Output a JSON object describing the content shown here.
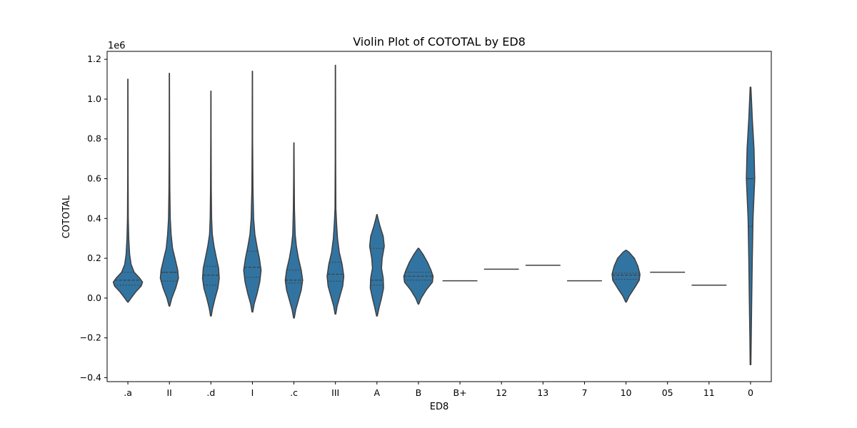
{
  "chart_data": {
    "type": "violin",
    "title": "Violin Plot of COTOTAL by ED8",
    "xlabel": "ED8",
    "ylabel": "COTOTAL",
    "y_scale_label": "1e6",
    "ylim": [
      -0.42,
      1.24
    ],
    "yticks": [
      -0.4,
      -0.2,
      0.0,
      0.2,
      0.4,
      0.6,
      0.8,
      1.0,
      1.2
    ],
    "ytick_labels": [
      "−0.4",
      "−0.2",
      "0.0",
      "0.2",
      "0.4",
      "0.6",
      "0.8",
      "1.0",
      "1.2"
    ],
    "color": "#3274a1",
    "edge_color": "#3f3f3f",
    "categories": [
      ".a",
      "II",
      ".d",
      "I",
      ".c",
      "III",
      "A",
      "B",
      "B+",
      "12",
      "13",
      "7",
      "10",
      "05",
      "11",
      "0"
    ],
    "violins": [
      {
        "category": ".a",
        "min": -0.02,
        "max": 1.1,
        "q1": 0.065,
        "median": 0.09,
        "q3": 0.13,
        "profile": [
          [
            -0.02,
            0.01
          ],
          [
            0.0,
            0.09
          ],
          [
            0.03,
            0.22
          ],
          [
            0.06,
            0.38
          ],
          [
            0.08,
            0.42
          ],
          [
            0.1,
            0.34
          ],
          [
            0.13,
            0.18
          ],
          [
            0.17,
            0.09
          ],
          [
            0.22,
            0.05
          ],
          [
            0.3,
            0.025
          ],
          [
            0.4,
            0.012
          ],
          [
            0.6,
            0.006
          ],
          [
            0.85,
            0.004
          ],
          [
            1.1,
            0.003
          ]
        ]
      },
      {
        "category": "II",
        "min": -0.04,
        "max": 1.13,
        "q1": 0.085,
        "median": 0.13,
        "q3": 0.13,
        "profile": [
          [
            -0.04,
            0.01
          ],
          [
            0.0,
            0.07
          ],
          [
            0.05,
            0.18
          ],
          [
            0.1,
            0.26
          ],
          [
            0.14,
            0.24
          ],
          [
            0.2,
            0.16
          ],
          [
            0.25,
            0.09
          ],
          [
            0.32,
            0.05
          ],
          [
            0.4,
            0.025
          ],
          [
            0.55,
            0.012
          ],
          [
            0.75,
            0.006
          ],
          [
            1.0,
            0.004
          ],
          [
            1.13,
            0.003
          ]
        ]
      },
      {
        "category": ".d",
        "min": -0.09,
        "max": 1.04,
        "q1": 0.065,
        "median": 0.115,
        "q3": 0.16,
        "profile": [
          [
            -0.09,
            0.01
          ],
          [
            -0.05,
            0.05
          ],
          [
            0.0,
            0.12
          ],
          [
            0.05,
            0.2
          ],
          [
            0.1,
            0.24
          ],
          [
            0.15,
            0.22
          ],
          [
            0.2,
            0.16
          ],
          [
            0.26,
            0.09
          ],
          [
            0.32,
            0.04
          ],
          [
            0.4,
            0.02
          ],
          [
            0.55,
            0.01
          ],
          [
            0.8,
            0.005
          ],
          [
            1.04,
            0.003
          ]
        ]
      },
      {
        "category": "I",
        "min": -0.07,
        "max": 1.14,
        "q1": 0.105,
        "median": 0.155,
        "q3": 0.235,
        "profile": [
          [
            -0.07,
            0.01
          ],
          [
            -0.03,
            0.05
          ],
          [
            0.02,
            0.13
          ],
          [
            0.08,
            0.21
          ],
          [
            0.14,
            0.25
          ],
          [
            0.2,
            0.2
          ],
          [
            0.26,
            0.13
          ],
          [
            0.32,
            0.07
          ],
          [
            0.4,
            0.035
          ],
          [
            0.55,
            0.015
          ],
          [
            0.8,
            0.006
          ],
          [
            1.14,
            0.003
          ]
        ]
      },
      {
        "category": ".c",
        "min": -0.1,
        "max": 0.78,
        "q1": 0.075,
        "median": 0.09,
        "q3": 0.14,
        "profile": [
          [
            -0.1,
            0.01
          ],
          [
            -0.06,
            0.05
          ],
          [
            -0.01,
            0.13
          ],
          [
            0.04,
            0.21
          ],
          [
            0.09,
            0.25
          ],
          [
            0.14,
            0.21
          ],
          [
            0.2,
            0.13
          ],
          [
            0.26,
            0.07
          ],
          [
            0.32,
            0.035
          ],
          [
            0.45,
            0.015
          ],
          [
            0.6,
            0.008
          ],
          [
            0.78,
            0.003
          ]
        ]
      },
      {
        "category": "III",
        "min": -0.08,
        "max": 1.17,
        "q1": 0.085,
        "median": 0.12,
        "q3": 0.18,
        "profile": [
          [
            -0.08,
            0.01
          ],
          [
            -0.04,
            0.05
          ],
          [
            0.01,
            0.13
          ],
          [
            0.06,
            0.21
          ],
          [
            0.11,
            0.24
          ],
          [
            0.17,
            0.19
          ],
          [
            0.23,
            0.11
          ],
          [
            0.3,
            0.06
          ],
          [
            0.38,
            0.03
          ],
          [
            0.45,
            0.013
          ],
          [
            0.7,
            0.006
          ],
          [
            1.17,
            0.003
          ]
        ]
      },
      {
        "category": "A",
        "min": -0.09,
        "max": 0.42,
        "q1": 0.065,
        "median": 0.09,
        "q3": 0.25,
        "profile": [
          [
            -0.09,
            0.01
          ],
          [
            -0.05,
            0.06
          ],
          [
            0.0,
            0.13
          ],
          [
            0.05,
            0.19
          ],
          [
            0.1,
            0.18
          ],
          [
            0.15,
            0.13
          ],
          [
            0.2,
            0.15
          ],
          [
            0.26,
            0.21
          ],
          [
            0.31,
            0.18
          ],
          [
            0.36,
            0.09
          ],
          [
            0.4,
            0.03
          ],
          [
            0.42,
            0.005
          ]
        ]
      },
      {
        "category": "B",
        "min": -0.03,
        "max": 0.25,
        "q1": 0.09,
        "median": 0.11,
        "q3": 0.13,
        "profile": [
          [
            -0.03,
            0.01
          ],
          [
            0.0,
            0.08
          ],
          [
            0.04,
            0.22
          ],
          [
            0.08,
            0.4
          ],
          [
            0.11,
            0.42
          ],
          [
            0.14,
            0.36
          ],
          [
            0.18,
            0.26
          ],
          [
            0.22,
            0.13
          ],
          [
            0.25,
            0.01
          ]
        ]
      },
      {
        "category": "B+",
        "single": 0.087
      },
      {
        "category": "12",
        "single": 0.145
      },
      {
        "category": "13",
        "single": 0.165
      },
      {
        "category": "7",
        "single": 0.087
      },
      {
        "category": "10",
        "min": -0.02,
        "max": 0.24,
        "q1": 0.095,
        "median": 0.115,
        "q3": 0.125,
        "profile": [
          [
            -0.02,
            0.01
          ],
          [
            0.01,
            0.09
          ],
          [
            0.05,
            0.24
          ],
          [
            0.09,
            0.38
          ],
          [
            0.12,
            0.4
          ],
          [
            0.16,
            0.34
          ],
          [
            0.2,
            0.24
          ],
          [
            0.23,
            0.09
          ],
          [
            0.24,
            0.01
          ]
        ]
      },
      {
        "category": "05",
        "single": 0.13
      },
      {
        "category": "11",
        "single": 0.065
      },
      {
        "category": "0",
        "min": -0.335,
        "max": 1.06,
        "q1": 0.36,
        "median": 0.6,
        "q3": 0.6,
        "profile": [
          [
            -0.335,
            0.01
          ],
          [
            -0.2,
            0.02
          ],
          [
            0.0,
            0.035
          ],
          [
            0.2,
            0.05
          ],
          [
            0.4,
            0.07
          ],
          [
            0.6,
            0.12
          ],
          [
            0.75,
            0.1
          ],
          [
            0.9,
            0.05
          ],
          [
            1.0,
            0.025
          ],
          [
            1.06,
            0.01
          ]
        ]
      }
    ]
  }
}
